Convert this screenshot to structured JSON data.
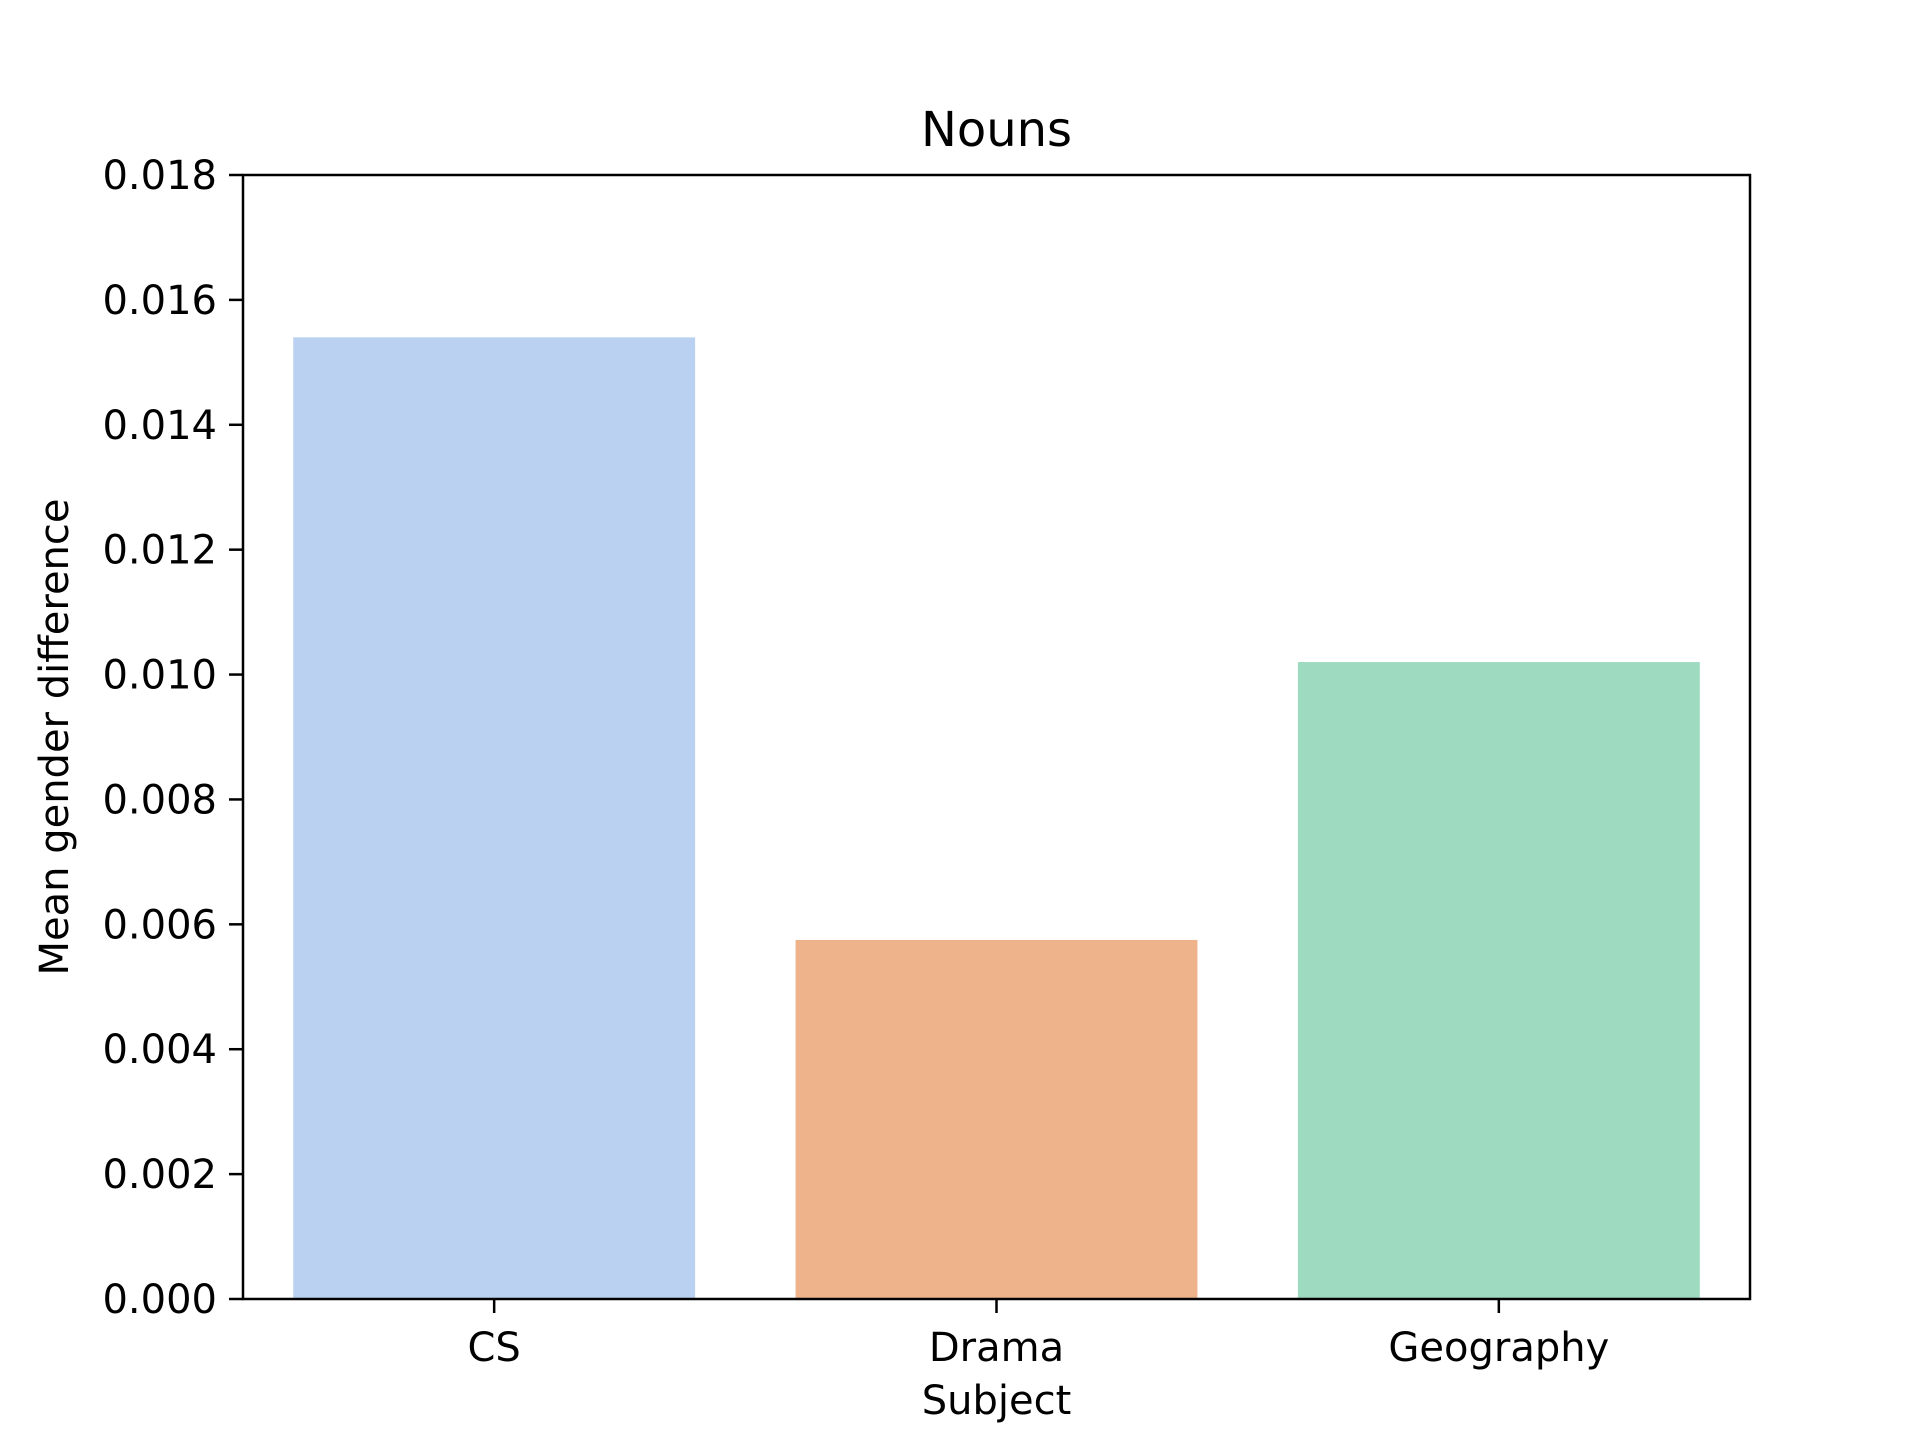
{
  "chart_data": {
    "type": "bar",
    "title": "Nouns",
    "xlabel": "Subject",
    "ylabel": "Mean gender difference",
    "categories": [
      "CS",
      "Drama",
      "Geography"
    ],
    "values": [
      0.0154,
      0.00575,
      0.0102
    ],
    "colors": [
      "#bad1f2",
      "#eeb38b",
      "#9ddac0"
    ],
    "ylim": [
      0,
      0.018
    ],
    "yticks": [
      0.0,
      0.002,
      0.004,
      0.006,
      0.008,
      0.01,
      0.012,
      0.014,
      0.016,
      0.018
    ],
    "ytick_labels": [
      "0.000",
      "0.002",
      "0.004",
      "0.006",
      "0.008",
      "0.010",
      "0.012",
      "0.014",
      "0.016",
      "0.018"
    ],
    "grid": false,
    "legend": "none"
  }
}
